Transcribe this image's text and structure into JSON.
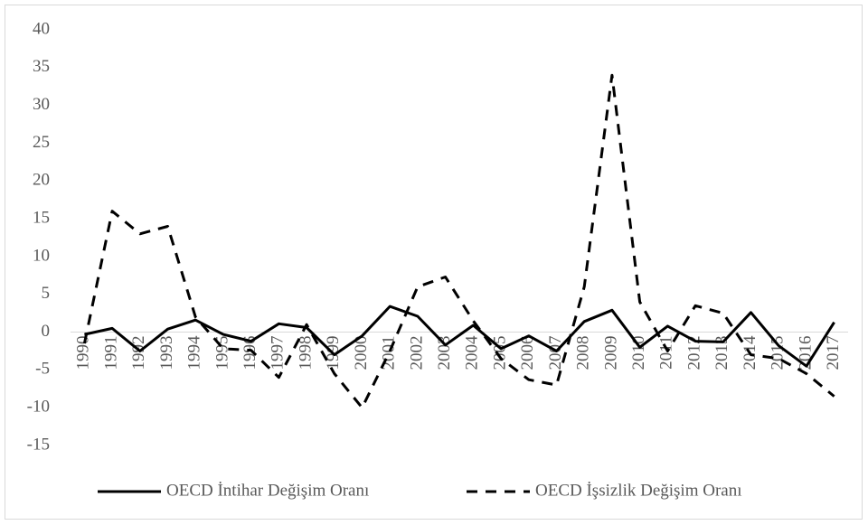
{
  "chart_data": {
    "type": "line",
    "categories": [
      "1990",
      "1991",
      "1992",
      "1993",
      "1994",
      "1995",
      "1996",
      "1997",
      "1998",
      "1999",
      "2000",
      "2001",
      "2002",
      "2003",
      "2004",
      "2005",
      "2006",
      "2007",
      "2008",
      "2009",
      "2010",
      "2011",
      "2012",
      "2013",
      "2014",
      "2015",
      "2016",
      "2017"
    ],
    "series": [
      {
        "name": "OECD İntihar Değişim Oranı",
        "color": "#000000",
        "dashed": false,
        "values": [
          -0.3,
          0.5,
          -2.5,
          0.4,
          1.6,
          -0.3,
          -1.2,
          1.1,
          0.6,
          -3,
          -0.5,
          3.4,
          2.1,
          -1.7,
          0.9,
          -2.2,
          -0.5,
          -2.5,
          1.4,
          2.9,
          -2,
          0.8,
          -1.2,
          -1.3,
          2.6,
          -1.8,
          -4.5,
          1.3
        ]
      },
      {
        "name": "OECD İşsizlik Değişim Oranı",
        "color": "#000000",
        "dashed": true,
        "values": [
          -1.5,
          16,
          13,
          14,
          2,
          -2.2,
          -2.4,
          -6,
          1,
          -5.5,
          -10,
          -2.5,
          6,
          7.3,
          1.5,
          -3.5,
          -6.3,
          -7,
          6,
          34,
          4,
          -2.5,
          3.5,
          2.5,
          -3,
          -3.5,
          -5.5,
          -8.5
        ]
      }
    ],
    "ylim": [
      -15,
      40
    ],
    "yticks": [
      -15,
      -10,
      -5,
      0,
      5,
      10,
      15,
      20,
      25,
      30,
      35,
      40
    ],
    "grid": false,
    "legend": "bottom"
  }
}
